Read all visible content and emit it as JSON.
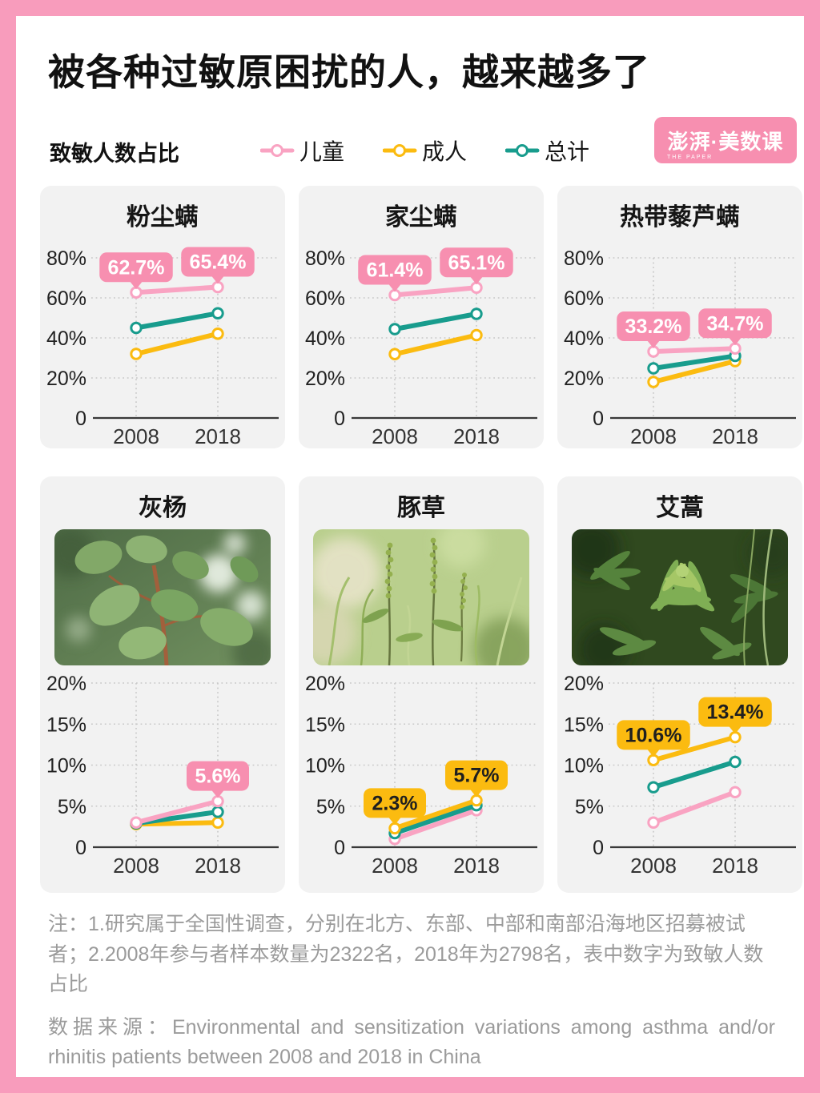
{
  "page": {
    "title": "被各种过敏原困扰的人，越来越多了",
    "subtitle": "致敏人数占比"
  },
  "legend": [
    {
      "label": "儿童",
      "color": "#F9A3C2"
    },
    {
      "label": "成人",
      "color": "#FBBB10"
    },
    {
      "label": "总计",
      "color": "#189C8D"
    }
  ],
  "logo": {
    "text": "澎湃·美数课",
    "subtext": "THE PAPER",
    "bg": "#F78FB0"
  },
  "colors": {
    "frame_pink": "#F89CBC",
    "series_child_pink": "#F9A3C2",
    "series_adult_yellow": "#FBBB10",
    "series_total_teal": "#189C8D",
    "callout_pink": "#F78FB0",
    "callout_yellow": "#FBBB10",
    "card_bg": "#F2F2F2",
    "note_gray": "#9B9B9B"
  },
  "chart_data": [
    {
      "type": "line",
      "title": "粉尘螨",
      "x": [
        "2008",
        "2018"
      ],
      "ylim": [
        0,
        80
      ],
      "yticks": [
        0,
        20,
        40,
        60,
        80
      ],
      "photo": null,
      "series": [
        {
          "name": "成人",
          "color": "#FBBB10",
          "values": [
            32.0,
            42.1
          ]
        },
        {
          "name": "总计",
          "color": "#189C8D",
          "values": [
            45.0,
            52.3
          ]
        },
        {
          "name": "儿童",
          "color": "#F9A3C2",
          "values": [
            62.7,
            65.4
          ]
        }
      ],
      "callouts": [
        {
          "series": "儿童",
          "point": 0,
          "text": "62.7%",
          "style": "pink"
        },
        {
          "series": "儿童",
          "point": 1,
          "text": "65.4%",
          "style": "pink"
        }
      ]
    },
    {
      "type": "line",
      "title": "家尘螨",
      "x": [
        "2008",
        "2018"
      ],
      "ylim": [
        0,
        80
      ],
      "yticks": [
        0,
        20,
        40,
        60,
        80
      ],
      "photo": null,
      "series": [
        {
          "name": "成人",
          "color": "#FBBB10",
          "values": [
            31.9,
            41.4
          ]
        },
        {
          "name": "总计",
          "color": "#189C8D",
          "values": [
            44.4,
            52.0
          ]
        },
        {
          "name": "儿童",
          "color": "#F9A3C2",
          "values": [
            61.4,
            65.1
          ]
        }
      ],
      "callouts": [
        {
          "series": "儿童",
          "point": 0,
          "text": "61.4%",
          "style": "pink"
        },
        {
          "series": "儿童",
          "point": 1,
          "text": "65.1%",
          "style": "pink"
        }
      ]
    },
    {
      "type": "line",
      "title": "热带藜芦螨",
      "x": [
        "2008",
        "2018"
      ],
      "ylim": [
        0,
        80
      ],
      "yticks": [
        0,
        20,
        40,
        60,
        80
      ],
      "photo": null,
      "series": [
        {
          "name": "成人",
          "color": "#FBBB10",
          "values": [
            18.0,
            28.4
          ]
        },
        {
          "name": "总计",
          "color": "#189C8D",
          "values": [
            24.8,
            31.0
          ]
        },
        {
          "name": "儿童",
          "color": "#F9A3C2",
          "values": [
            33.2,
            34.7
          ]
        }
      ],
      "callouts": [
        {
          "series": "儿童",
          "point": 0,
          "text": "33.2%",
          "style": "pink"
        },
        {
          "series": "儿童",
          "point": 1,
          "text": "34.7%",
          "style": "pink"
        }
      ]
    },
    {
      "type": "line",
      "title": "灰杨",
      "x": [
        "2008",
        "2018"
      ],
      "ylim": [
        0,
        20
      ],
      "yticks": [
        0,
        5,
        10,
        15,
        20
      ],
      "photo": {
        "kind": "poplar",
        "alt": "灰杨叶片照片"
      },
      "series": [
        {
          "name": "成人",
          "color": "#FBBB10",
          "values": [
            2.8,
            3.0
          ]
        },
        {
          "name": "总计",
          "color": "#189C8D",
          "values": [
            2.9,
            4.3
          ]
        },
        {
          "name": "儿童",
          "color": "#F9A3C2",
          "values": [
            3.0,
            5.6
          ]
        }
      ],
      "callouts": [
        {
          "series": "儿童",
          "point": 1,
          "text": "5.6%",
          "style": "pink"
        }
      ]
    },
    {
      "type": "line",
      "title": "豚草",
      "x": [
        "2008",
        "2018"
      ],
      "ylim": [
        0,
        20
      ],
      "yticks": [
        0,
        5,
        10,
        15,
        20
      ],
      "photo": {
        "kind": "ragweed",
        "alt": "豚草植株照片"
      },
      "series": [
        {
          "name": "儿童",
          "color": "#F9A3C2",
          "values": [
            1.0,
            4.5
          ]
        },
        {
          "name": "总计",
          "color": "#189C8D",
          "values": [
            1.7,
            5.1
          ]
        },
        {
          "name": "成人",
          "color": "#FBBB10",
          "values": [
            2.3,
            5.7
          ]
        }
      ],
      "callouts": [
        {
          "series": "成人",
          "point": 0,
          "text": "2.3%",
          "style": "yellow"
        },
        {
          "series": "成人",
          "point": 1,
          "text": "5.7%",
          "style": "yellow"
        }
      ]
    },
    {
      "type": "line",
      "title": "艾蒿",
      "x": [
        "2008",
        "2018"
      ],
      "ylim": [
        0,
        20
      ],
      "yticks": [
        0,
        5,
        10,
        15,
        20
      ],
      "photo": {
        "kind": "mugwort",
        "alt": "艾蒿叶片照片"
      },
      "series": [
        {
          "name": "儿童",
          "color": "#F9A3C2",
          "values": [
            3.0,
            6.7
          ]
        },
        {
          "name": "总计",
          "color": "#189C8D",
          "values": [
            7.3,
            10.4
          ]
        },
        {
          "name": "成人",
          "color": "#FBBB10",
          "values": [
            10.6,
            13.4
          ]
        }
      ],
      "callouts": [
        {
          "series": "成人",
          "point": 0,
          "text": "10.6%",
          "style": "yellow"
        },
        {
          "series": "成人",
          "point": 1,
          "text": "13.4%",
          "style": "yellow"
        }
      ]
    }
  ],
  "notes": {
    "note": "注：1.研究属于全国性调查，分别在北方、东部、中部和南部沿海地区招募被试者；2.2008年参与者样本数量为2322名，2018年为2798名，表中数字为致敏人数占比",
    "source": "数据来源：Environmental and sensitization variations among asthma and/or rhinitis patients between 2008 and 2018 in China"
  }
}
